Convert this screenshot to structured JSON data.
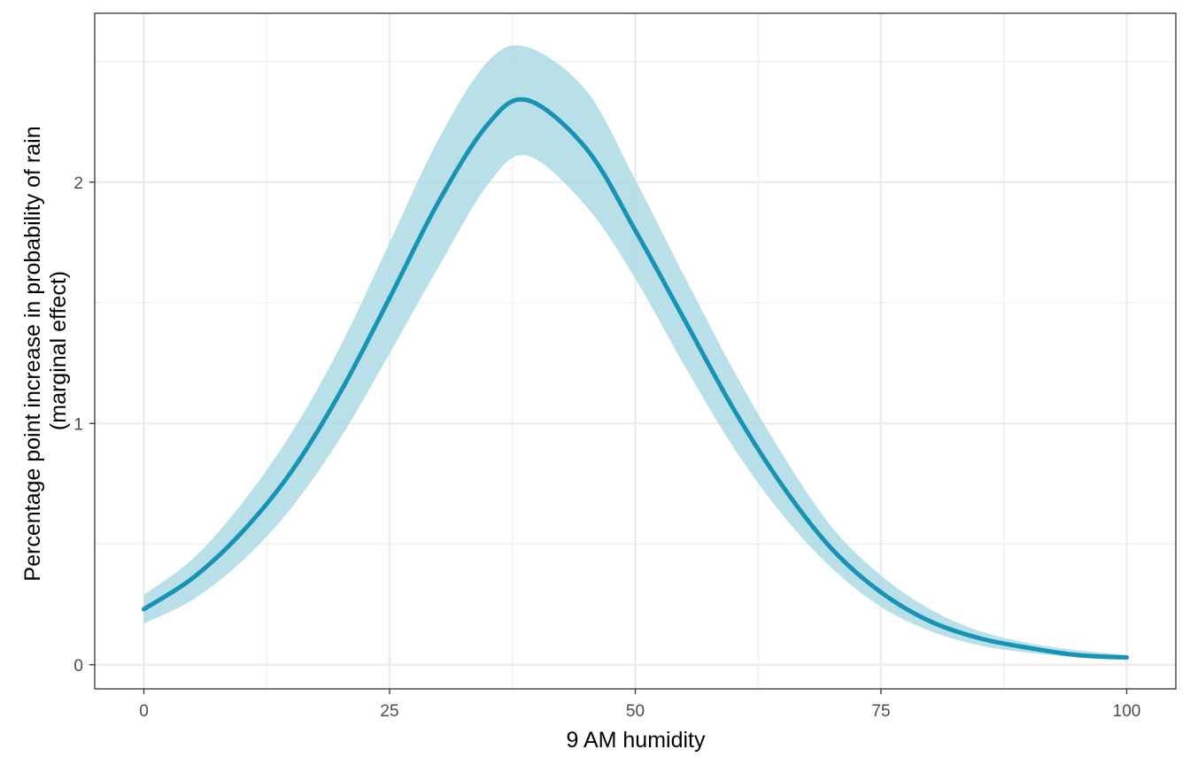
{
  "chart_data": {
    "type": "line",
    "title": "",
    "xlabel": "9 AM humidity",
    "ylabel_lines": [
      "Percentage point increase in probability of rain",
      "(marginal effect)"
    ],
    "xlim": [
      -5,
      105
    ],
    "ylim": [
      -0.1,
      2.7
    ],
    "x_ticks": [
      0,
      25,
      50,
      75,
      100
    ],
    "y_ticks": [
      0,
      1,
      2
    ],
    "x_tick_labels": [
      "0",
      "25",
      "50",
      "75",
      "100"
    ],
    "y_tick_labels": [
      "0",
      "1",
      "2"
    ],
    "grid": true,
    "legend": "none",
    "series": [
      {
        "x": [
          0,
          5,
          10,
          15,
          20,
          25,
          30,
          35,
          39,
          45,
          50,
          55,
          60,
          65,
          70,
          75,
          80,
          85,
          90,
          95,
          100
        ],
        "y": [
          0.23,
          0.36,
          0.55,
          0.8,
          1.13,
          1.52,
          1.92,
          2.24,
          2.34,
          2.14,
          1.8,
          1.43,
          1.06,
          0.74,
          0.48,
          0.3,
          0.18,
          0.11,
          0.07,
          0.04,
          0.03
        ],
        "lower": [
          0.17,
          0.27,
          0.43,
          0.65,
          0.94,
          1.29,
          1.65,
          1.99,
          2.11,
          1.9,
          1.6,
          1.24,
          0.9,
          0.62,
          0.4,
          0.24,
          0.14,
          0.08,
          0.05,
          0.03,
          0.02
        ],
        "upper": [
          0.29,
          0.44,
          0.67,
          0.96,
          1.32,
          1.75,
          2.18,
          2.5,
          2.56,
          2.38,
          2.01,
          1.61,
          1.22,
          0.87,
          0.57,
          0.37,
          0.23,
          0.14,
          0.09,
          0.06,
          0.04
        ]
      }
    ],
    "colors": {
      "line": "#1793b5",
      "ribbon": "#a7d8e3",
      "panel_border": "#333333",
      "grid": "#ebebeb"
    }
  }
}
